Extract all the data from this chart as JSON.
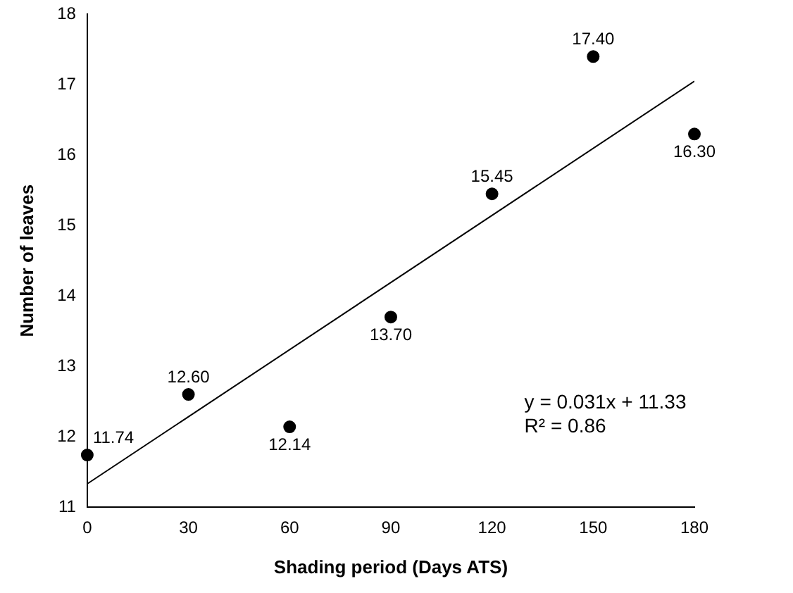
{
  "chart_data": {
    "type": "scatter",
    "xlabel": "Shading period (Days ATS)",
    "ylabel": "Number of leaves",
    "x": [
      0,
      30,
      60,
      90,
      120,
      150,
      180
    ],
    "series": [
      {
        "color": "#000000",
        "values": [
          11.74,
          12.6,
          12.14,
          13.7,
          15.45,
          17.4,
          16.3
        ],
        "value_labels": [
          "11.74",
          "12.60",
          "12.14",
          "13.70",
          "15.45",
          "17.40",
          "16.30"
        ]
      },
      {
        "type": "line",
        "color": "#000000",
        "x": [
          0,
          180
        ],
        "values": [
          11.33,
          17.05
        ],
        "marker": "none"
      }
    ],
    "xlim": [
      0,
      180
    ],
    "xticks": [
      0,
      30,
      60,
      90,
      120,
      150,
      180
    ],
    "ylim": [
      11,
      18
    ],
    "yticks": [
      11,
      12,
      13,
      14,
      15,
      16,
      17,
      18
    ],
    "grid": false,
    "legend": false,
    "marker": "circle",
    "annotations": [
      "y = 0.031x + 11.33",
      "R² = 0.86"
    ]
  }
}
